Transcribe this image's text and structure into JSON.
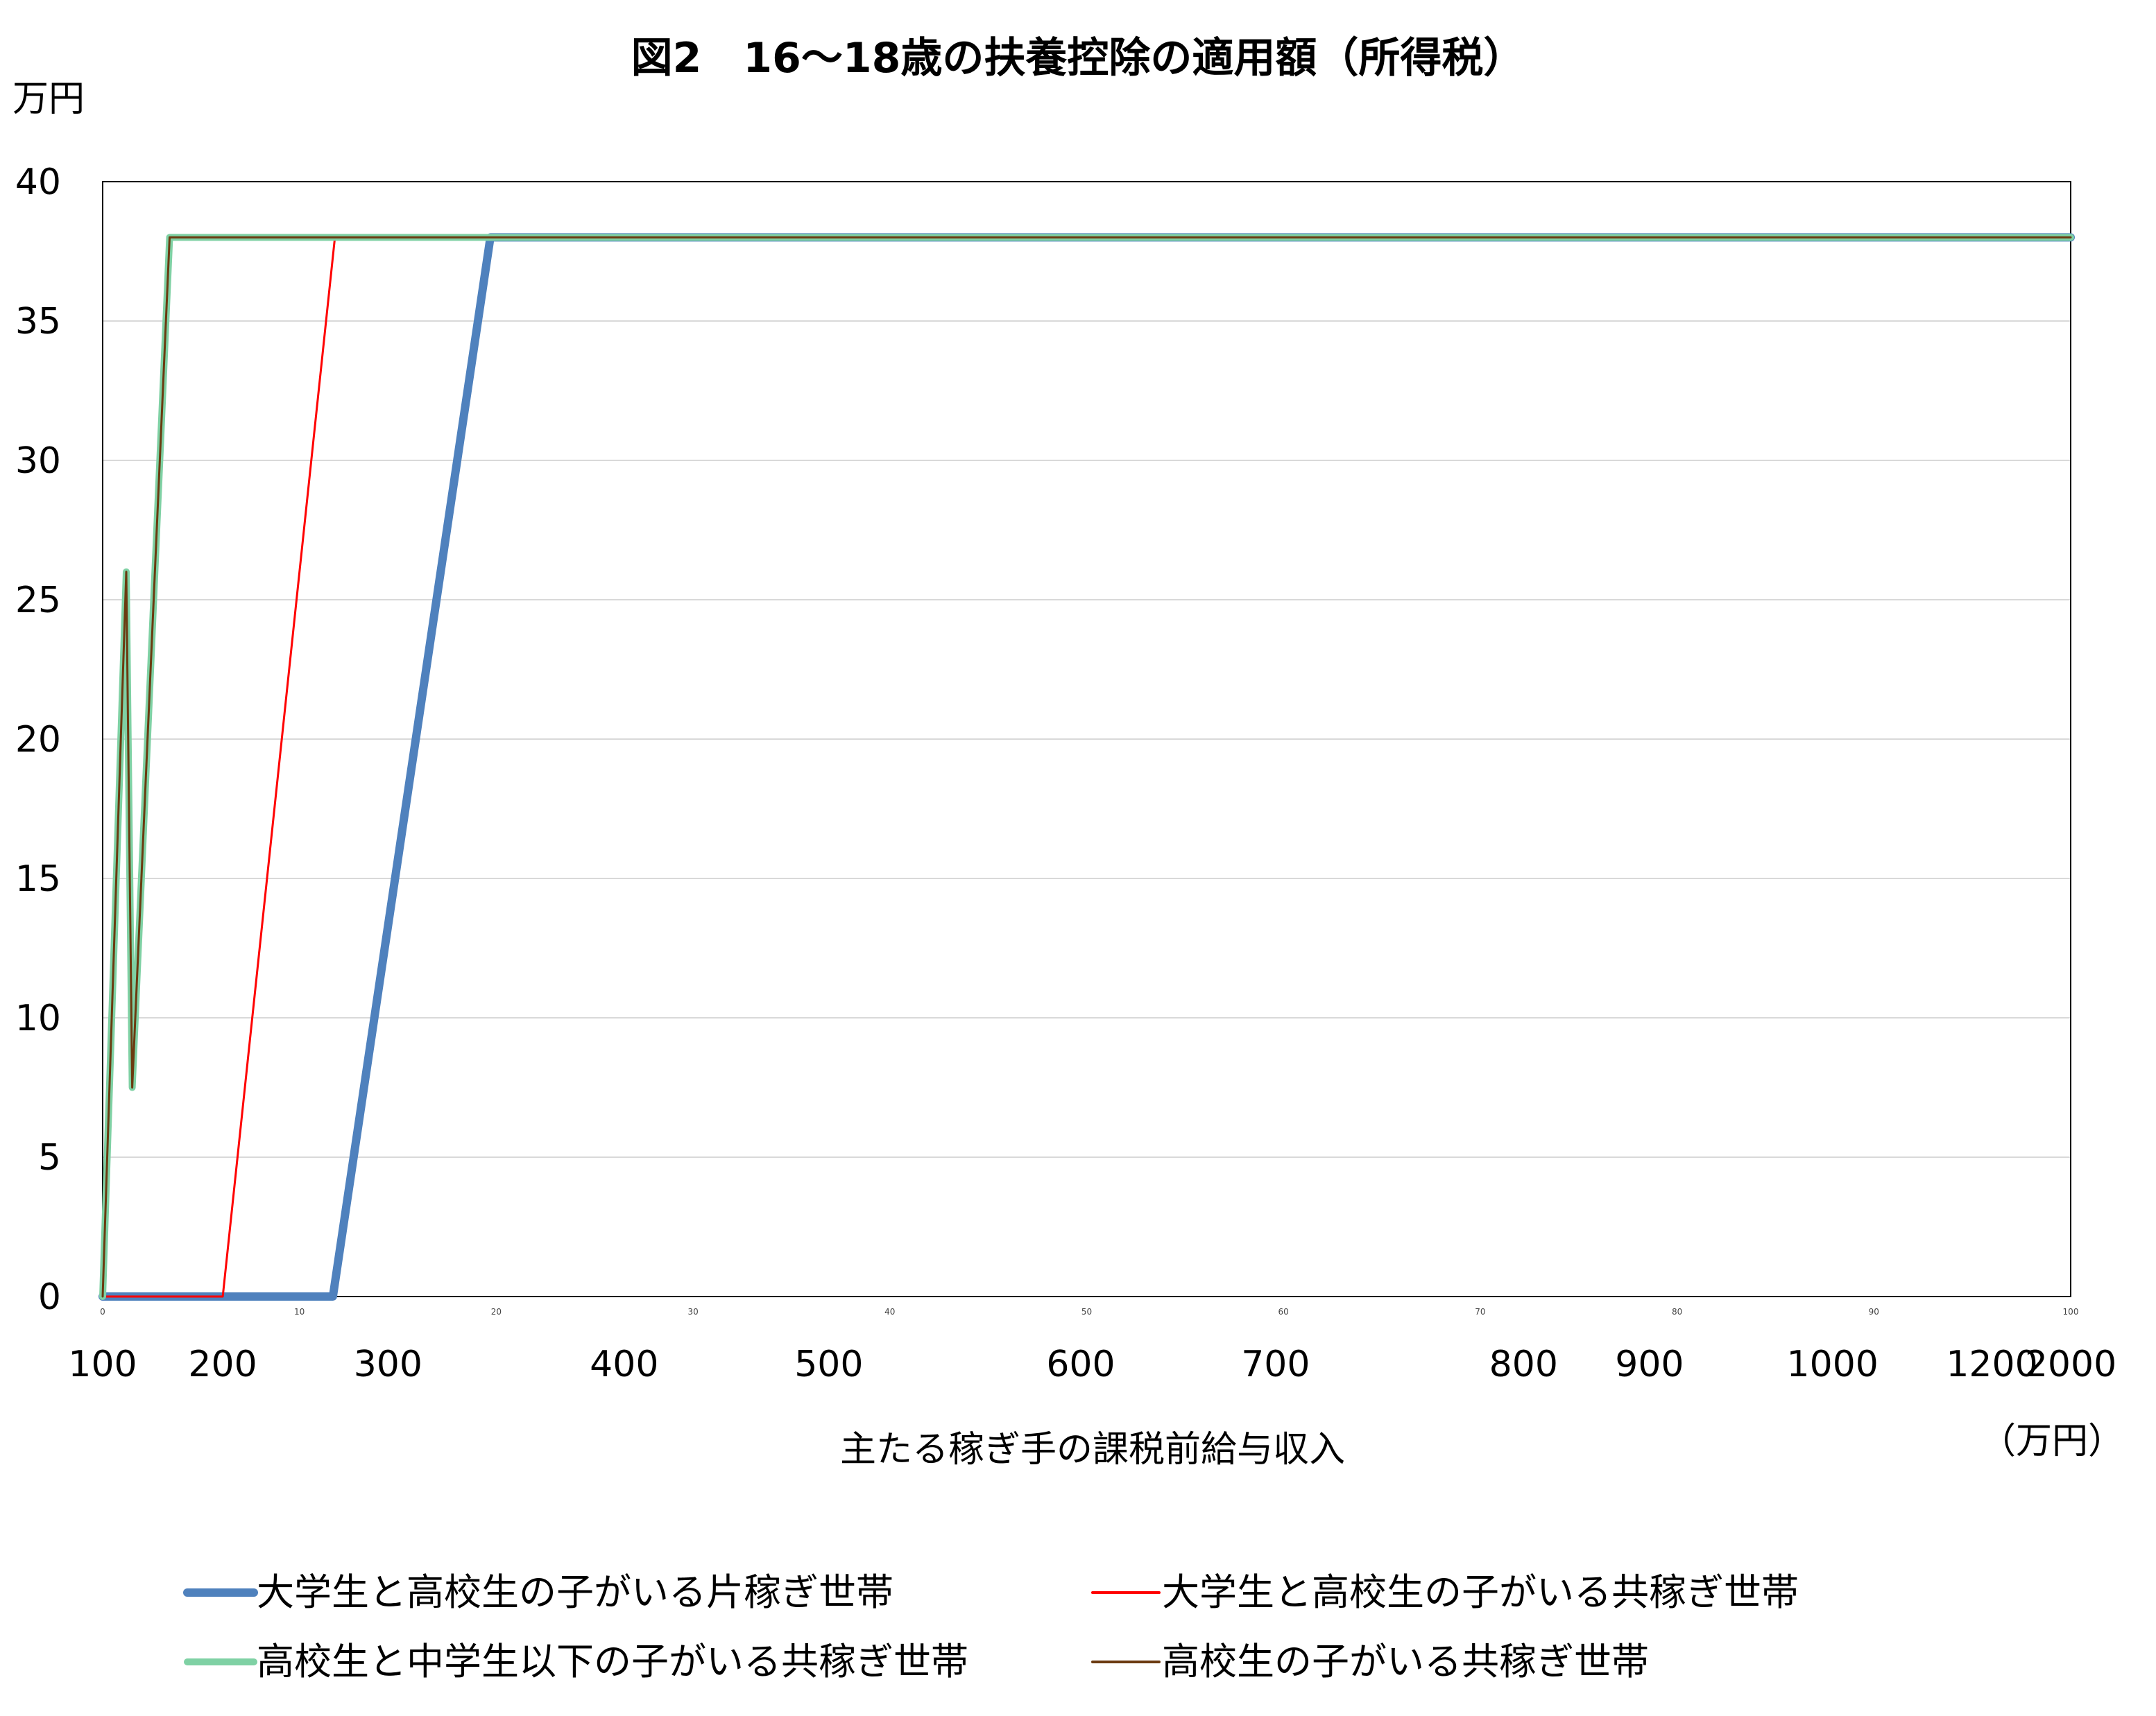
{
  "chart_data": {
    "type": "line",
    "title": "図2　16～18歳の扶養控除の適用額（所得税）",
    "y_unit": "万円",
    "x_unit": "（万円）",
    "xlabel": "主たる稼ぎ手の課税前給与収入",
    "ylim": [
      0,
      40
    ],
    "y_ticks": [
      "0",
      "5",
      "10",
      "15",
      "20",
      "25",
      "30",
      "35",
      "40"
    ],
    "xlim": [
      0,
      100
    ],
    "x_small_ticks": [
      "0",
      "10",
      "20",
      "30",
      "40",
      "50",
      "60",
      "70",
      "80",
      "90",
      "100"
    ],
    "x_category_labels": [
      {
        "label": "100",
        "at": 0
      },
      {
        "label": "200",
        "at": 6.1
      },
      {
        "label": "300",
        "at": 14.5
      },
      {
        "label": "400",
        "at": 26.5
      },
      {
        "label": "500",
        "at": 36.9
      },
      {
        "label": "600",
        "at": 49.7
      },
      {
        "label": "700",
        "at": 59.6
      },
      {
        "label": "800",
        "at": 72.2
      },
      {
        "label": "900",
        "at": 78.6
      },
      {
        "label": "1000",
        "at": 87.9
      },
      {
        "label": "1200",
        "at": 96.0
      },
      {
        "label": "2000",
        "at": 100
      }
    ],
    "grid": true,
    "legend_position": "bottom",
    "series": [
      {
        "name": "大学生と高校生の子がいる片稼ぎ世帯",
        "color": "#4f81bd",
        "width": 12,
        "x": [
          0,
          11.7,
          19.7,
          100
        ],
        "y": [
          0,
          0,
          38,
          38
        ]
      },
      {
        "name": "大学生と高校生の子がいる共稼ぎ世帯",
        "color": "#ff0000",
        "width": 3,
        "x": [
          0,
          6.1,
          11.8,
          100
        ],
        "y": [
          0,
          0,
          38,
          38
        ]
      },
      {
        "name": "高校生と中学生以下の子がいる共稼ぎ世帯",
        "color": "#7fd1a4",
        "width": 10,
        "x": [
          0,
          1.2,
          1.5,
          3.4,
          100
        ],
        "y": [
          0,
          26,
          7.5,
          38,
          38
        ]
      },
      {
        "name": "高校生の子がいる共稼ぎ世帯",
        "color": "#6b3a10",
        "width": 3,
        "x": [
          0,
          1.2,
          1.5,
          3.4,
          100
        ],
        "y": [
          0,
          26,
          7.5,
          38,
          38
        ]
      }
    ]
  }
}
